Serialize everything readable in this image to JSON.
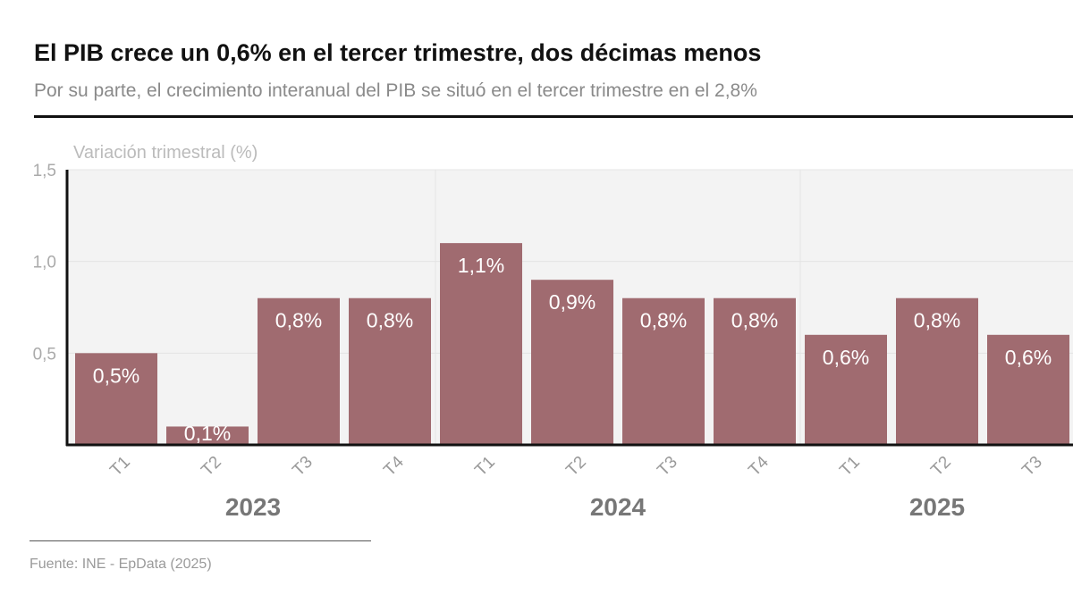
{
  "header": {
    "title": "El PIB crece un 0,6% en el tercer trimestre, dos décimas menos",
    "subtitle": "Por su parte, el crecimiento interanual del PIB se situó en el tercer trimestre en el 2,8%"
  },
  "footer": {
    "source": "Fuente: INE - EpData (2025)"
  },
  "chart_data": {
    "type": "bar",
    "title": "El PIB crece un 0,6% en el tercer trimestre, dos décimas menos",
    "ylabel": "Variación trimestral (%)",
    "xlabel": "",
    "ylim": [
      0,
      1.5
    ],
    "yticks": [
      "1,5",
      "1,0",
      "0,5"
    ],
    "ytick_values": [
      1.5,
      1.0,
      0.5
    ],
    "grid": true,
    "categories": [
      "T1",
      "T2",
      "T3",
      "T4",
      "T1",
      "T2",
      "T3",
      "T4",
      "T1",
      "T2",
      "T3"
    ],
    "years": [
      {
        "label": "2023",
        "start": 0,
        "count": 4
      },
      {
        "label": "2024",
        "start": 4,
        "count": 4
      },
      {
        "label": "2025",
        "start": 8,
        "count": 3
      }
    ],
    "values": [
      0.5,
      0.1,
      0.8,
      0.8,
      1.1,
      0.9,
      0.8,
      0.8,
      0.6,
      0.8,
      0.6
    ],
    "labels": [
      "0,5%",
      "0,1%",
      "0,8%",
      "0,8%",
      "1,1%",
      "0,9%",
      "0,8%",
      "0,8%",
      "0,6%",
      "0,8%",
      "0,6%"
    ],
    "colors": {
      "bar": "#a06b70",
      "plot_bg": "#f3f3f3",
      "grid": "#e4e4e4"
    }
  }
}
